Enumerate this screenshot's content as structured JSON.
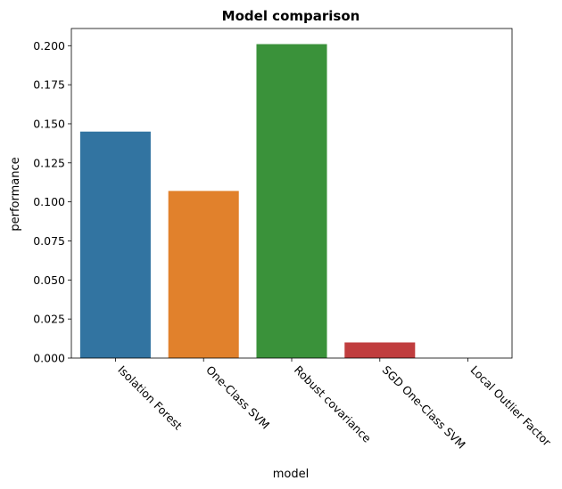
{
  "chart_data": {
    "type": "bar",
    "title": "Model comparison",
    "xlabel": "model",
    "ylabel": "performance",
    "categories": [
      "Isolation Forest",
      "One-Class SVM",
      "Robust covariance",
      "SGD One-Class SVM",
      "Local Outlier Factor"
    ],
    "values": [
      0.145,
      0.107,
      0.201,
      0.01,
      0.0
    ],
    "colors": [
      "#3274a1",
      "#e1812c",
      "#3a923a",
      "#c03d3e",
      "#9372b2"
    ],
    "ylim": [
      0,
      0.211
    ],
    "yticks": [
      0.0,
      0.025,
      0.05,
      0.075,
      0.1,
      0.125,
      0.15,
      0.175,
      0.2
    ],
    "ytick_labels": [
      "0.000",
      "0.025",
      "0.050",
      "0.075",
      "0.100",
      "0.125",
      "0.150",
      "0.175",
      "0.200"
    ],
    "grid": false,
    "legend": "none"
  }
}
